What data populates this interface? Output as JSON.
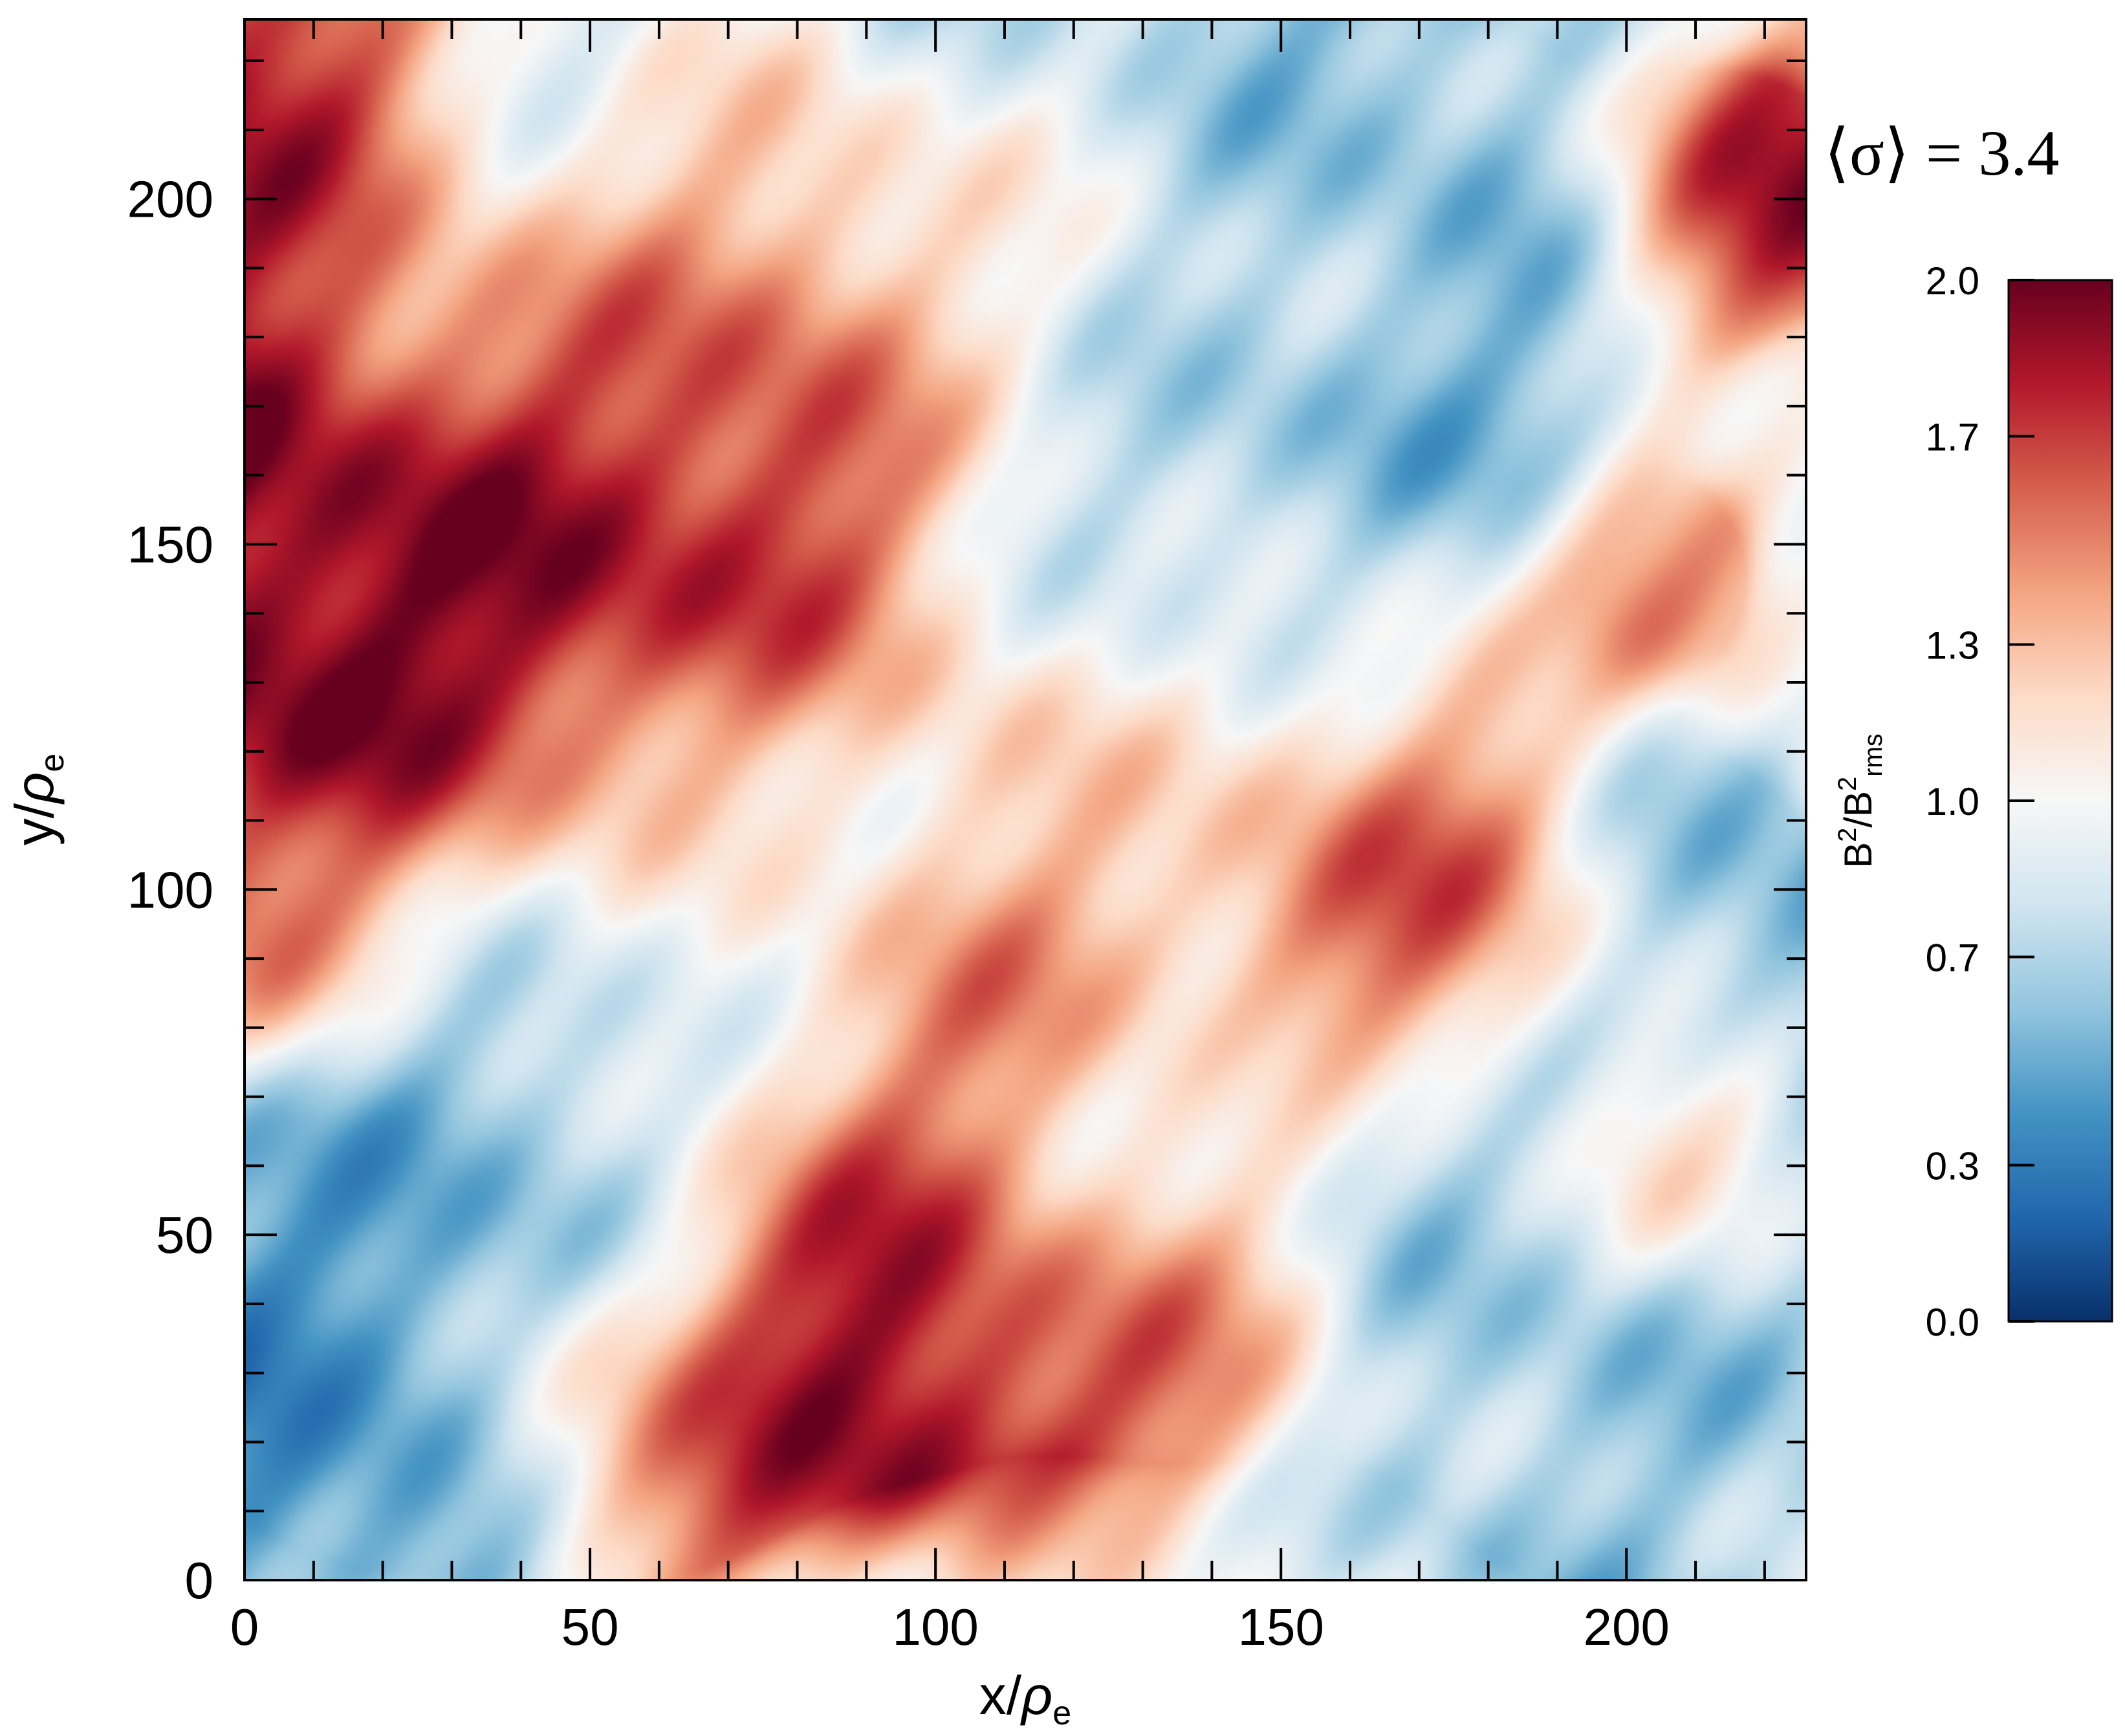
{
  "chart_data": {
    "type": "heatmap",
    "xlabel": {
      "base": "x/",
      "greek": "ρ",
      "sub": "e"
    },
    "ylabel": {
      "base": "y/",
      "greek": "ρ",
      "sub": "e"
    },
    "xlim": [
      0,
      226
    ],
    "ylim": [
      0,
      226
    ],
    "x_ticks": [
      0,
      50,
      100,
      150,
      200
    ],
    "y_ticks": [
      0,
      50,
      100,
      150,
      200
    ],
    "x_tick_labels": [
      "0",
      "50",
      "100",
      "150",
      "200"
    ],
    "y_tick_labels": [
      "0",
      "50",
      "100",
      "150",
      "200"
    ],
    "annotation": "⟨σ⟩ = 3.4",
    "colorbar": {
      "label": {
        "b": "B",
        "b_sup": "2",
        "slash": "/",
        "b2": "B",
        "b2_sup": "2",
        "b2_sub": "rms"
      },
      "range": [
        0.0,
        2.0
      ],
      "ticks": [
        0.0,
        0.3,
        0.7,
        1.0,
        1.3,
        1.7,
        2.0
      ],
      "tick_labels": [
        "0.0",
        "0.3",
        "0.7",
        "1.0",
        "1.3",
        "1.7",
        "2.0"
      ],
      "colormap": "RdBu_r",
      "colors": [
        "#08306b",
        "#2166ac",
        "#4393c3",
        "#92c5de",
        "#d1e5f0",
        "#f7f7f7",
        "#fddbc7",
        "#f4a582",
        "#d6604d",
        "#b2182b",
        "#67001f"
      ]
    },
    "field_features": [
      {
        "x": 18,
        "y": 160,
        "value": 2.0,
        "spread": 32
      },
      {
        "x": 55,
        "y": 140,
        "value": 2.0,
        "spread": 28
      },
      {
        "x": 70,
        "y": 180,
        "value": 1.9,
        "spread": 22
      },
      {
        "x": 8,
        "y": 212,
        "value": 2.0,
        "spread": 14
      },
      {
        "x": 118,
        "y": 190,
        "value": 1.4,
        "spread": 22
      },
      {
        "x": 45,
        "y": 200,
        "value": 0.6,
        "spread": 24
      },
      {
        "x": 135,
        "y": 200,
        "value": 0.5,
        "spread": 30
      },
      {
        "x": 145,
        "y": 150,
        "value": 0.4,
        "spread": 26
      },
      {
        "x": 170,
        "y": 190,
        "value": 0.6,
        "spread": 28
      },
      {
        "x": 218,
        "y": 200,
        "value": 2.0,
        "spread": 14
      },
      {
        "x": 205,
        "y": 145,
        "value": 1.8,
        "spread": 10
      },
      {
        "x": 170,
        "y": 100,
        "value": 2.0,
        "spread": 18
      },
      {
        "x": 160,
        "y": 125,
        "value": 1.4,
        "spread": 20
      },
      {
        "x": 210,
        "y": 100,
        "value": 0.5,
        "spread": 16
      },
      {
        "x": 72,
        "y": 98,
        "value": 0.4,
        "spread": 24
      },
      {
        "x": 100,
        "y": 80,
        "value": 1.9,
        "spread": 22
      },
      {
        "x": 92,
        "y": 35,
        "value": 2.0,
        "spread": 18
      },
      {
        "x": 133,
        "y": 40,
        "value": 1.9,
        "spread": 16
      },
      {
        "x": 60,
        "y": 20,
        "value": 1.8,
        "spread": 14
      },
      {
        "x": 20,
        "y": 30,
        "value": 0.4,
        "spread": 28
      },
      {
        "x": 30,
        "y": 70,
        "value": 0.6,
        "spread": 18
      },
      {
        "x": 185,
        "y": 45,
        "value": 0.6,
        "spread": 30
      },
      {
        "x": 215,
        "y": 20,
        "value": 0.7,
        "spread": 22
      },
      {
        "x": 130,
        "y": 60,
        "value": 0.8,
        "spread": 18
      },
      {
        "x": 115,
        "y": 120,
        "value": 1.3,
        "spread": 20
      },
      {
        "x": 8,
        "y": 95,
        "value": 1.6,
        "spread": 12
      },
      {
        "x": 210,
        "y": 60,
        "value": 1.6,
        "spread": 10
      }
    ]
  }
}
